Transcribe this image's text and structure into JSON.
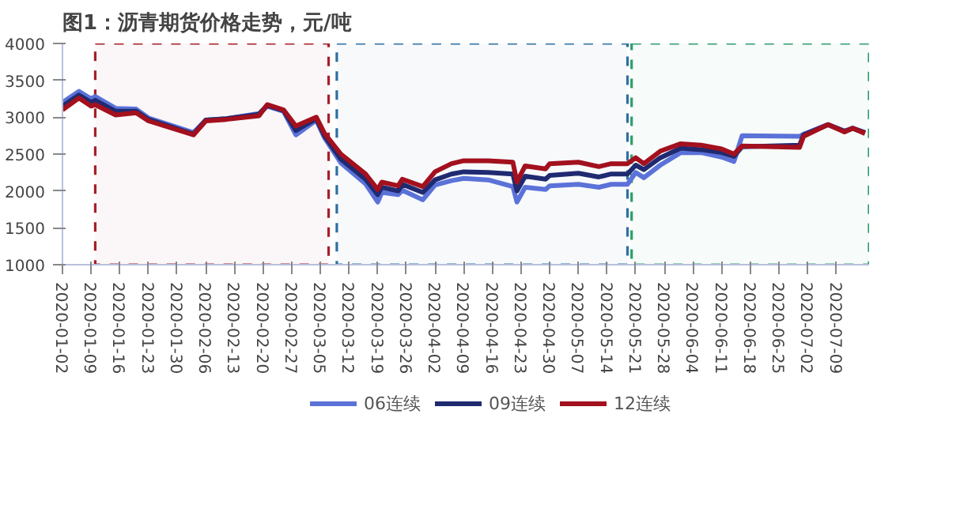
{
  "chart_data": {
    "type": "line",
    "title": "图1：沥青期货价格走势，元/吨",
    "x": [
      "2020-01-02",
      "2020-01-06",
      "2020-01-09",
      "2020-01-10",
      "2020-01-15",
      "2020-01-20",
      "2020-01-23",
      "2020-02-03",
      "2020-02-06",
      "2020-02-11",
      "2020-02-19",
      "2020-02-21",
      "2020-02-25",
      "2020-02-28",
      "2020-03-04",
      "2020-03-06",
      "2020-03-10",
      "2020-03-16",
      "2020-03-19",
      "2020-03-20",
      "2020-03-24",
      "2020-03-25",
      "2020-03-30",
      "2020-04-02",
      "2020-04-06",
      "2020-04-09",
      "2020-04-15",
      "2020-04-21",
      "2020-04-22",
      "2020-04-24",
      "2020-04-29",
      "2020-04-30",
      "2020-05-07",
      "2020-05-12",
      "2020-05-15",
      "2020-05-19",
      "2020-05-21",
      "2020-05-23",
      "2020-05-27",
      "2020-06-01",
      "2020-06-06",
      "2020-06-11",
      "2020-06-14",
      "2020-06-16",
      "2020-06-30",
      "2020-07-01",
      "2020-07-07",
      "2020-07-11",
      "2020-07-13",
      "2020-07-16"
    ],
    "series": [
      {
        "name": "06连续",
        "color": "#5b72d8",
        "values": [
          3200,
          3350,
          3250,
          3280,
          3120,
          3110,
          2990,
          2790,
          2960,
          2980,
          3050,
          3150,
          3080,
          2760,
          2960,
          2720,
          2380,
          2100,
          1850,
          1980,
          1950,
          2010,
          1880,
          2080,
          2140,
          2170,
          2150,
          2060,
          1850,
          2050,
          2020,
          2070,
          2090,
          2050,
          2090,
          2090,
          2250,
          2180,
          2350,
          2520,
          2520,
          2460,
          2400,
          2750,
          2740,
          2770,
          2900,
          2810,
          2850,
          2790
        ]
      },
      {
        "name": "09连续",
        "color": "#1f2a70",
        "values": [
          3150,
          3300,
          3200,
          3230,
          3080,
          3080,
          2970,
          2770,
          2960,
          2980,
          3040,
          3160,
          3090,
          2820,
          2980,
          2750,
          2430,
          2160,
          1950,
          2050,
          2000,
          2090,
          1980,
          2150,
          2230,
          2260,
          2250,
          2230,
          2000,
          2200,
          2160,
          2210,
          2240,
          2190,
          2230,
          2230,
          2350,
          2290,
          2450,
          2580,
          2560,
          2520,
          2470,
          2600,
          2620,
          2760,
          2900,
          2810,
          2850,
          2790
        ]
      },
      {
        "name": "12连续",
        "color": "#a3101e",
        "values": [
          3100,
          3260,
          3150,
          3170,
          3030,
          3060,
          2950,
          2760,
          2950,
          2970,
          3020,
          3170,
          3100,
          2880,
          3000,
          2780,
          2500,
          2230,
          2020,
          2120,
          2070,
          2160,
          2060,
          2260,
          2370,
          2410,
          2410,
          2390,
          2120,
          2340,
          2300,
          2370,
          2390,
          2330,
          2370,
          2370,
          2450,
          2370,
          2540,
          2640,
          2620,
          2570,
          2500,
          2610,
          2590,
          2740,
          2900,
          2800,
          2850,
          2780
        ]
      }
    ],
    "xlim": [
      "2020-01-02",
      "2020-07-17"
    ],
    "xticks": [
      "2020-01-02",
      "2020-01-09",
      "2020-01-16",
      "2020-01-23",
      "2020-01-30",
      "2020-02-06",
      "2020-02-13",
      "2020-02-20",
      "2020-02-27",
      "2020-03-05",
      "2020-03-12",
      "2020-03-19",
      "2020-03-26",
      "2020-04-02",
      "2020-04-09",
      "2020-04-16",
      "2020-04-23",
      "2020-04-30",
      "2020-05-07",
      "2020-05-14",
      "2020-05-21",
      "2020-05-28",
      "2020-06-04",
      "2020-06-11",
      "2020-06-18",
      "2020-06-25",
      "2020-07-02",
      "2020-07-09"
    ],
    "ylim": [
      1000,
      4000
    ],
    "yticks": [
      1000,
      1500,
      2000,
      2500,
      3000,
      3500,
      4000
    ],
    "bands": [
      {
        "axis": "x",
        "from": "2020-01-10",
        "to": "2020-03-07",
        "color": "#a3202a"
      },
      {
        "axis": "x",
        "from": "2020-03-09",
        "to": "2020-05-19",
        "color": "#2e6fa0"
      },
      {
        "axis": "x",
        "from": "2020-05-20",
        "to": "2020-07-17",
        "color": "#2e9e6e"
      }
    ],
    "grid": false,
    "legend": "bottom",
    "line_style": "solid"
  }
}
